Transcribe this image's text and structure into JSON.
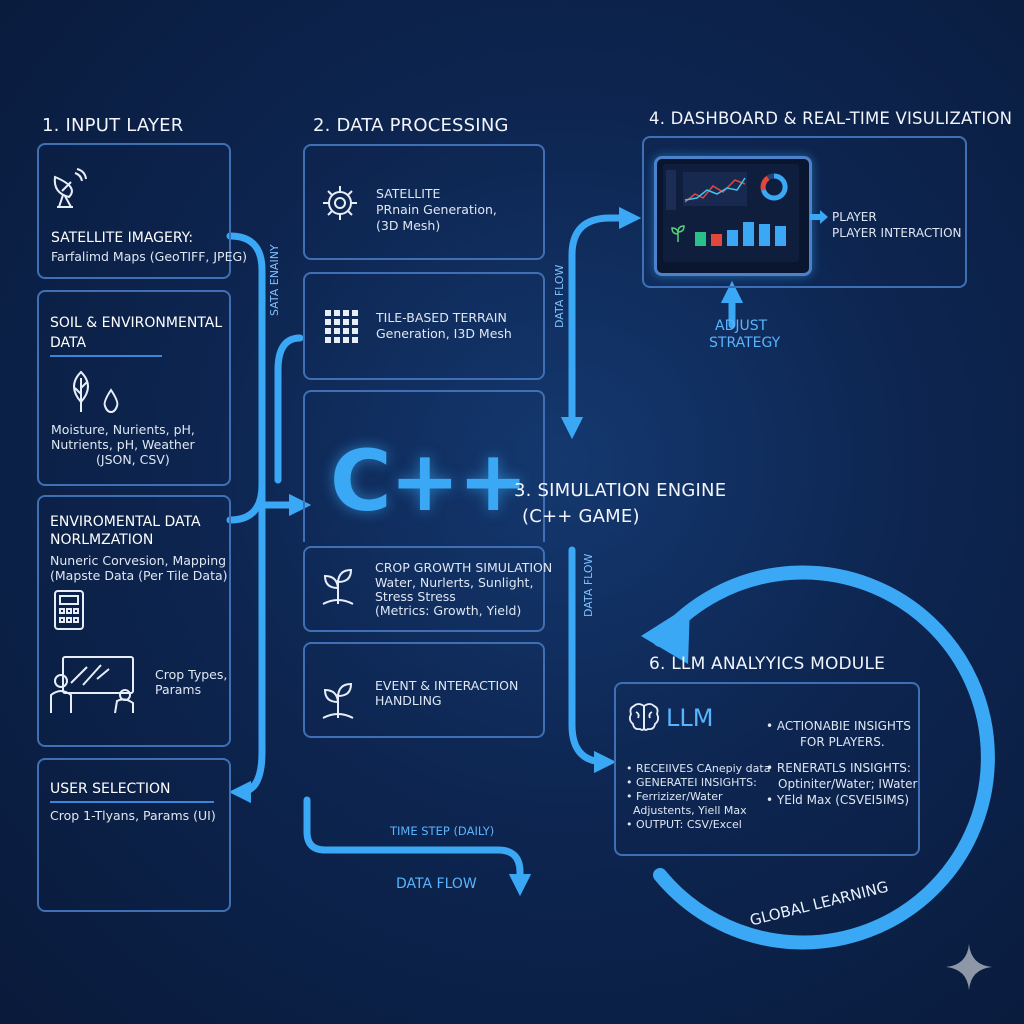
{
  "input_layer": {
    "heading": "1. INPUT LAYER",
    "satellite": {
      "title": "SATELLITE IMAGERY:",
      "desc": "Farfalimd Maps (GeoTIFF, JPEG)"
    },
    "soil": {
      "title_line1": "SOIL & ENVIRONMENTAL",
      "title_line2": "DATA",
      "desc_line1": "Moisture, Nurients, pH,",
      "desc_line2": "Nutrients, pH, Weather",
      "desc_line3": "(JSON, CSV)"
    },
    "normalization": {
      "title_line1": "ENVIROMENTAL DATA",
      "title_line2": "NORLMZATION",
      "desc_line1": "Nuneric Corvesion, Mapping",
      "desc_line2": "(Mapste Data (Per Tile Data)",
      "crop_line1": "Crop Types,",
      "crop_line2": "Params"
    },
    "user_selection": {
      "title": "USER SELECTION",
      "desc": "Crop 1-Tlyans, Params (UI)"
    }
  },
  "data_processing": {
    "heading": "2. DATA PROCESSING",
    "satellite_box": {
      "line1": "SATELLITE",
      "line2": "PRnain Generation,",
      "line3": "(3D Mesh)"
    },
    "terrain_box": {
      "line1": "TILE-BASED TERRAIN",
      "line2": "Generation, I3D Mesh"
    }
  },
  "simulation": {
    "logo": "C++",
    "heading_line1": "3. SIMULATION ENGINE",
    "heading_line2": "(C++ GAME)",
    "crop_growth": {
      "line1": "CROP GROWTH SIMULATION",
      "line2": "Water, Nurlerts, Sunlight,",
      "line3": "Stress Stress",
      "line4": "(Metrics: Growth, Yield)"
    },
    "events": {
      "line1": "EVENT & INTERACTION",
      "line2": "HANDLING"
    },
    "time_step": "TIME STEP (DAILY)"
  },
  "dashboard": {
    "heading": "4. DASHBOARD & REAL-TIME VISULIZATION",
    "player_line1": "PLAYER",
    "player_line2": "PLAYER INTERACTION",
    "adjust_line1": "ADJUST",
    "adjust_line2": "STRATEGY"
  },
  "llm_module": {
    "heading": "6. LLM ANALYYICS MODULE",
    "logo": "LLM",
    "left_bullets": [
      "RECEIIVES CAnepiy data",
      "GENERATEI INSIGHTS:",
      "Ferrizizer/Water",
      "Adjustents, Yiell Max",
      "OUTPUT: CSV/Excel"
    ],
    "right_bullets": [
      {
        "line1": "ACTIONABIE INSIGHTS",
        "line2": "FOR PLAYERS."
      },
      {
        "line1": "RENERATLS INSIGHTS:",
        "line2": "Optiniter/Water; IWater"
      },
      {
        "line1": "YEld Max (CSVEI5IMS)",
        "line2": ""
      }
    ]
  },
  "flow_labels": {
    "side_vertical": "SATA ENAINY",
    "data_flow_upper": "DATA FLOW",
    "data_flow_mid": "DATA FLOW",
    "data_flow_bottom": "DATA FLOW",
    "global_learning": "GLOBAL LEARNING"
  },
  "colors": {
    "accent": "#3aa8f5",
    "box_border": "#3f6fb4",
    "background": "#0d2550"
  }
}
